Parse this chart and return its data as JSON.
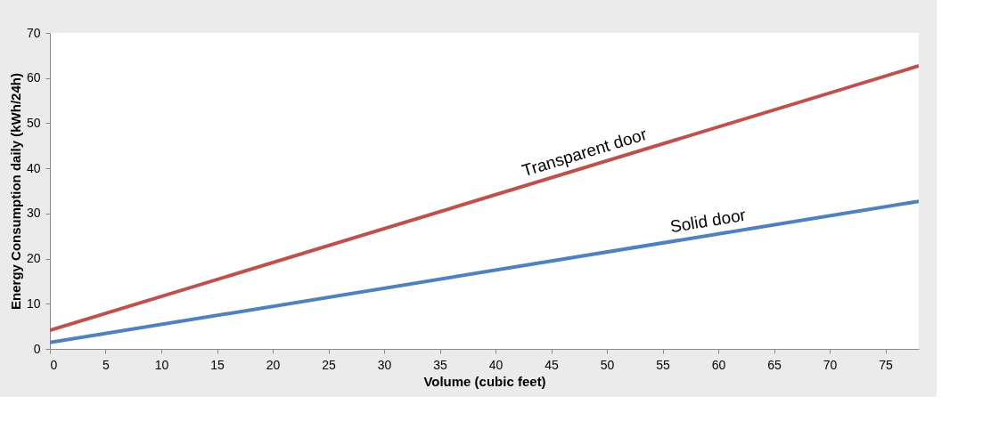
{
  "chart_data": {
    "type": "line",
    "xlabel": "Volume (cubic feet)",
    "ylabel": "Energy Consumption daily (kWh/24h)",
    "xlim": [
      0,
      78
    ],
    "xticks": [
      0,
      5,
      10,
      15,
      20,
      25,
      30,
      35,
      40,
      45,
      50,
      55,
      60,
      65,
      70,
      75
    ],
    "ylim": [
      0,
      70
    ],
    "yticks": [
      0,
      10,
      20,
      30,
      40,
      50,
      60,
      70
    ],
    "grid": false,
    "marker": "none",
    "line_style": "solid",
    "x": [
      0,
      78
    ],
    "series": [
      {
        "name": "Transparent door",
        "color": "#c0504d",
        "values": [
          4.1,
          62.7
        ]
      },
      {
        "name": "Solid door",
        "color": "#4f81bd",
        "values": [
          1.4,
          32.7
        ]
      }
    ]
  }
}
